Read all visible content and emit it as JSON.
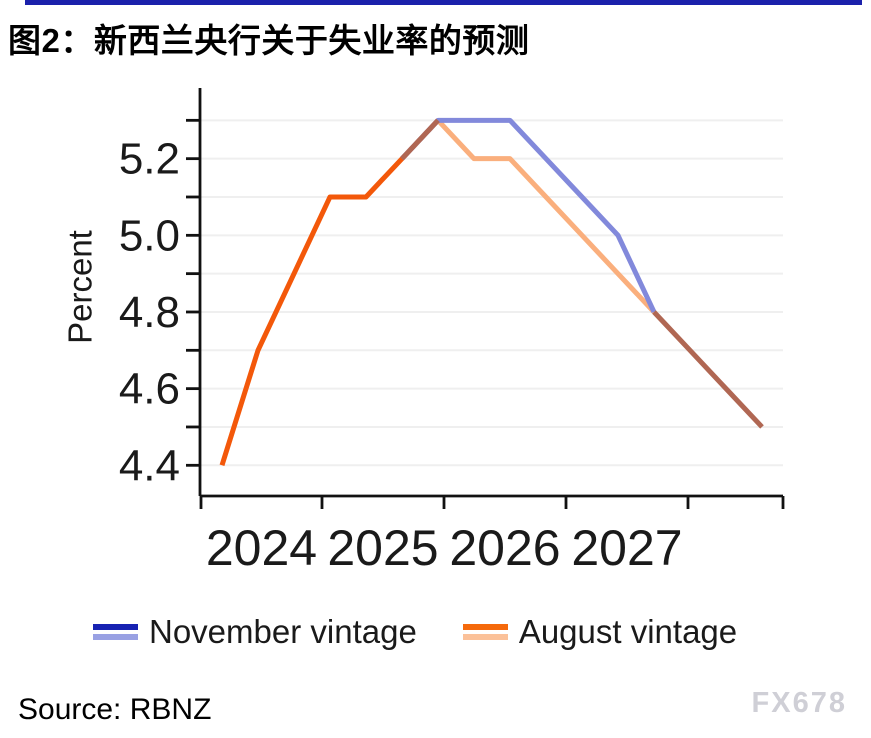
{
  "page": {
    "background": "#FFFFFF",
    "top_bar_color": "#1B21AB"
  },
  "header": {
    "title": "图2：新西兰央行关于失业率的预测"
  },
  "chart_data": {
    "type": "line",
    "title": "图2：新西兰央行关于失业率的预测",
    "xlabel": "",
    "ylabel": "Percent",
    "x_tick_labels": [
      "2024",
      "2025",
      "2026",
      "2027"
    ],
    "y_tick_labels": [
      "5.2",
      "5.0",
      "4.8",
      "4.6",
      "4.4"
    ],
    "y_grid": {
      "min": 4.4,
      "max": 5.3,
      "step": 0.1
    },
    "ylim": [
      4.32,
      5.38
    ],
    "grid": true,
    "legend_position": "bottom",
    "categories": [
      "2024Q1",
      "2024Q2",
      "2024Q3",
      "2024Q4",
      "2025Q1",
      "2025Q2",
      "2025Q3",
      "2025Q4",
      "2026Q1",
      "2026Q2",
      "2026Q3",
      "2026Q4",
      "2027Q1",
      "2027Q2",
      "2027Q3",
      "2027Q4"
    ],
    "series": [
      {
        "name": "November vintage",
        "values": [
          4.4,
          4.7,
          4.9,
          5.1,
          5.1,
          5.2,
          5.3,
          5.3,
          5.3,
          5.2,
          5.1,
          5.0,
          4.8,
          4.7,
          4.6,
          4.5
        ]
      },
      {
        "name": "August vintage",
        "values": [
          4.4,
          4.7,
          4.9,
          5.1,
          5.1,
          5.2,
          5.3,
          5.2,
          5.2,
          5.1,
          5.0,
          4.9,
          4.8,
          4.7,
          4.6,
          4.5
        ]
      }
    ],
    "render_segments": [
      {
        "series": 1,
        "from": 0,
        "to": 6,
        "color": "#F3580A",
        "role": "august-history"
      },
      {
        "series": 1,
        "from": 6,
        "to": 12,
        "color": "#FAAF7D",
        "role": "august-forecast"
      },
      {
        "series": 0,
        "from": 5,
        "to": 12,
        "color": "#8289DB",
        "role": "november-forecast"
      },
      {
        "series": 0,
        "from": 5,
        "to": 6,
        "color": "#B06753",
        "role": "overlap-november-over-august"
      },
      {
        "series": 0,
        "from": 12,
        "to": 15,
        "color": "#B06753",
        "role": "overlap-merged-tail"
      }
    ]
  },
  "legend": {
    "items": [
      {
        "label": "November vintage",
        "history_color": "#1722B2",
        "forecast_color": "#99A1E3"
      },
      {
        "label": "August vintage",
        "history_color": "#F5690B",
        "forecast_color": "#FBC199"
      }
    ]
  },
  "footer": {
    "source": "Source: RBNZ",
    "watermark": "FX678"
  }
}
